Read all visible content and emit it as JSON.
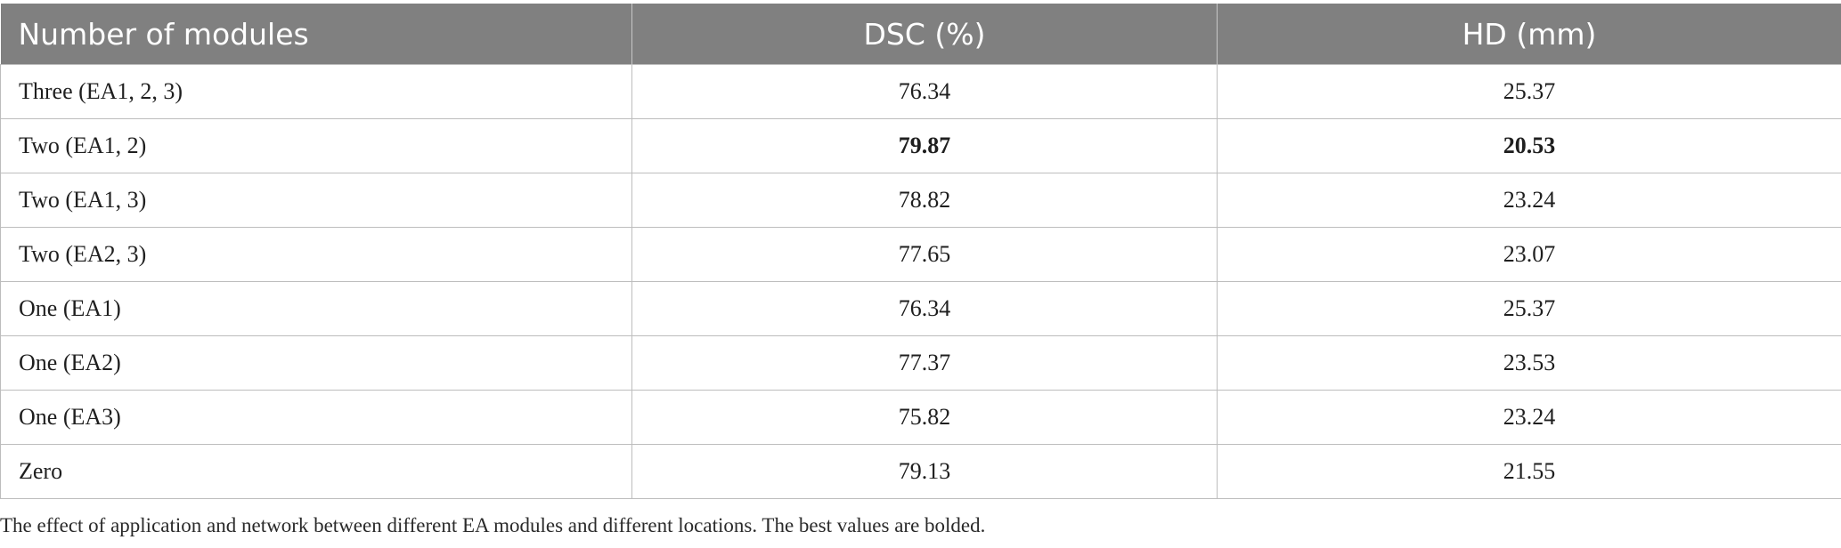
{
  "table": {
    "headers": [
      "Number of modules",
      "DSC (%)",
      "HD (mm)"
    ],
    "rows": [
      {
        "label": "Three (EA1, 2, 3)",
        "dsc": "76.34",
        "hd": "25.37",
        "best_dsc": false,
        "best_hd": false
      },
      {
        "label": "Two (EA1, 2)",
        "dsc": "79.87",
        "hd": "20.53",
        "best_dsc": true,
        "best_hd": true
      },
      {
        "label": "Two (EA1, 3)",
        "dsc": "78.82",
        "hd": "23.24",
        "best_dsc": false,
        "best_hd": false
      },
      {
        "label": "Two (EA2, 3)",
        "dsc": "77.65",
        "hd": "23.07",
        "best_dsc": false,
        "best_hd": false
      },
      {
        "label": "One (EA1)",
        "dsc": "76.34",
        "hd": "25.37",
        "best_dsc": false,
        "best_hd": false
      },
      {
        "label": "One (EA2)",
        "dsc": "77.37",
        "hd": "23.53",
        "best_dsc": false,
        "best_hd": false
      },
      {
        "label": "One (EA3)",
        "dsc": "75.82",
        "hd": "23.24",
        "best_dsc": false,
        "best_hd": false
      },
      {
        "label": "Zero",
        "dsc": "79.13",
        "hd": "21.55",
        "best_dsc": false,
        "best_hd": false
      }
    ]
  },
  "caption": "The effect of application and network between different EA modules and different locations. The best values are bolded.",
  "colors": {
    "header_background": "#808080",
    "header_text": "#ffffff",
    "grid_line": "#bdbdbd"
  }
}
